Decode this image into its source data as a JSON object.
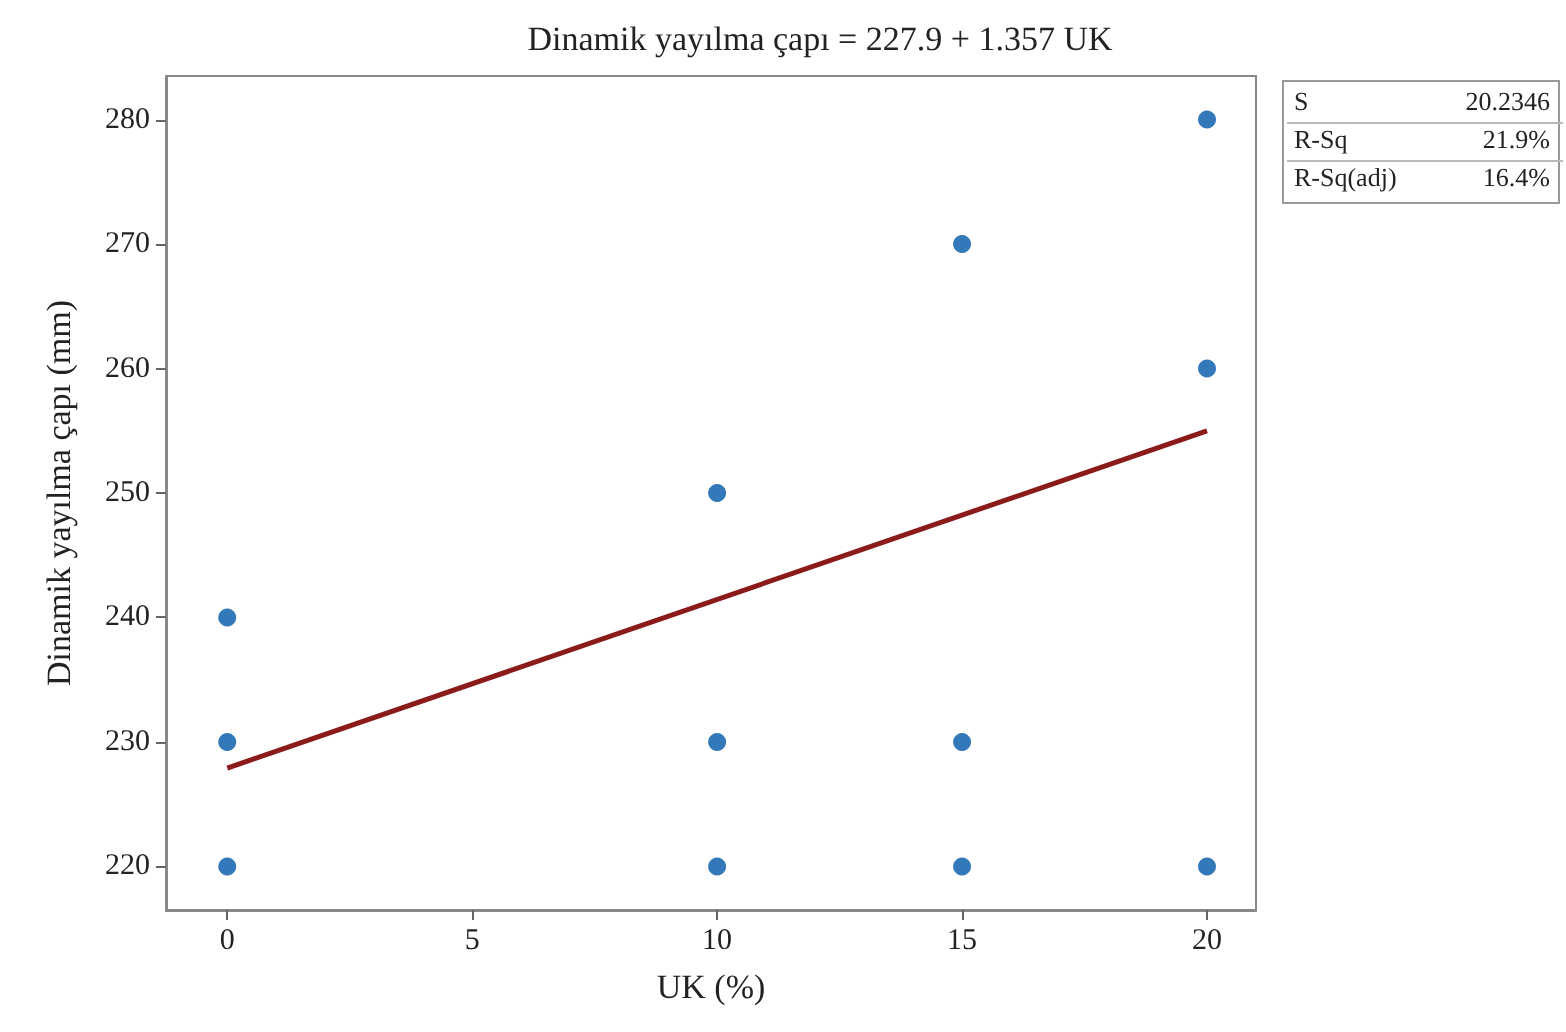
{
  "chart_data": {
    "type": "scatter",
    "title": "Dinamik yayılma çapı = 227.9 + 1.357 UK",
    "xlabel": "UK (%)",
    "ylabel": "Dinamik yayılma çapı (mm)",
    "annotations": [
      "S",
      "20.2346",
      "R-Sq",
      "21.9%",
      "R-Sq(adj)",
      "16.4%"
    ],
    "xlim": [
      -1.25,
      21
    ],
    "xticks": [
      0,
      5,
      10,
      15,
      20
    ],
    "ylim": [
      216.5,
      283.5
    ],
    "yticks": [
      220,
      230,
      240,
      250,
      260,
      270,
      280
    ],
    "grid": false,
    "series": [
      {
        "color": "#0057a8",
        "marker": "circle",
        "x": [
          0,
          0,
          0,
          10,
          10,
          10,
          15,
          15,
          15,
          20,
          20,
          20
        ],
        "values": [
          220,
          230,
          240,
          220,
          230,
          250,
          220,
          230,
          270,
          220,
          260,
          280
        ]
      },
      {
        "type": "line",
        "color": "#8b1a1a",
        "marker": "none",
        "line_style": "solid",
        "x": [
          0,
          20
        ],
        "values": [
          227.9,
          255.0
        ]
      }
    ]
  }
}
